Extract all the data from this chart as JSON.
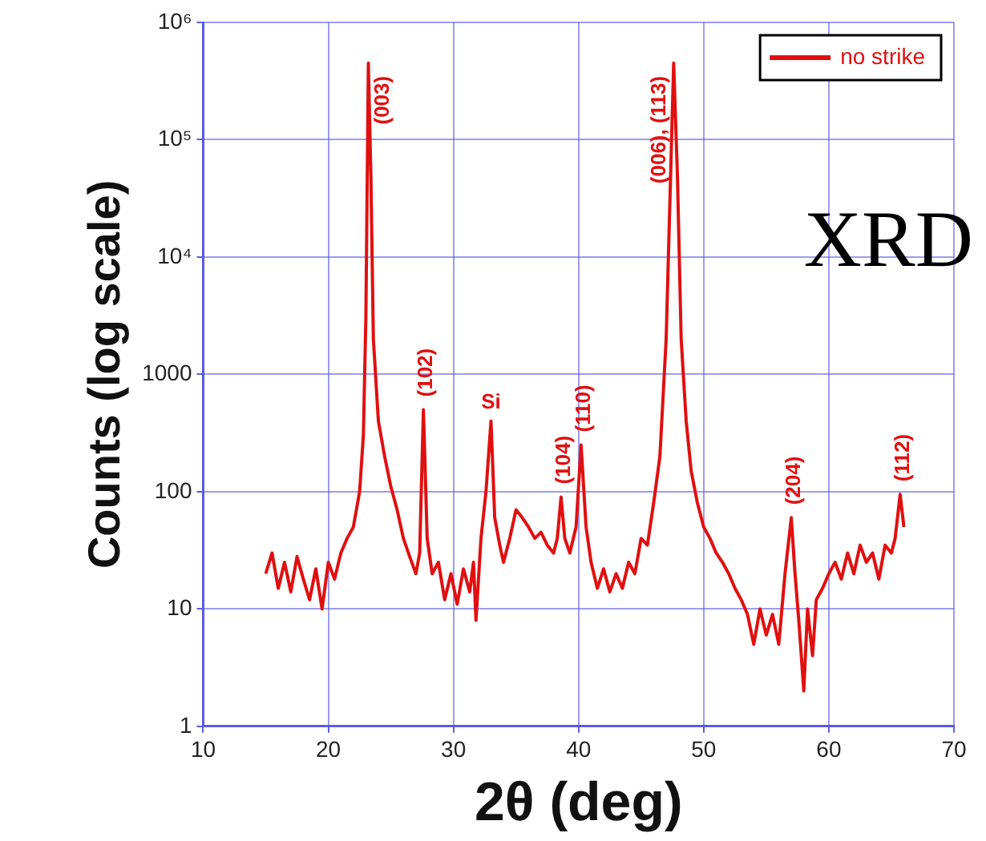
{
  "chart_data": {
    "type": "line",
    "xlabel": "2θ (deg)",
    "ylabel": "Counts (log scale)",
    "log": "y",
    "grid": true,
    "legend": "top right",
    "marker": "none",
    "line_style": "solid",
    "xlim": [
      10,
      70
    ],
    "xticks": [
      10,
      20,
      30,
      40,
      50,
      60,
      70
    ],
    "ylim": [
      1,
      1000000
    ],
    "yticks": [
      1,
      10,
      100,
      1000,
      {
        "value": 10000,
        "label": "10⁴"
      },
      {
        "value": 100000,
        "label": "10⁵"
      },
      {
        "value": 1000000,
        "label": "10⁶"
      }
    ],
    "series": [
      {
        "name": "no strike",
        "color": "#e01010",
        "x": [
          15,
          15.5,
          16,
          16.5,
          17,
          17.5,
          18,
          18.5,
          19,
          19.5,
          20,
          20.5,
          21,
          21.5,
          22,
          22.5,
          22.8,
          23.0,
          23.2,
          23.4,
          23.6,
          24,
          24.5,
          25,
          25.5,
          26,
          26.5,
          27,
          27.3,
          27.6,
          27.9,
          28.3,
          28.8,
          29.3,
          29.8,
          30.3,
          30.8,
          31.3,
          31.6,
          31.8,
          32.2,
          32.6,
          33.0,
          33.3,
          33.7,
          34,
          34.5,
          35,
          35.5,
          36,
          36.5,
          37,
          37.5,
          38,
          38.3,
          38.6,
          38.9,
          39.3,
          39.8,
          40.2,
          40.6,
          41,
          41.5,
          42,
          42.5,
          43,
          43.5,
          44,
          44.5,
          45,
          45.5,
          46,
          46.5,
          47,
          47.3,
          47.6,
          47.9,
          48.2,
          48.6,
          49,
          49.5,
          50,
          50.5,
          51,
          51.5,
          52,
          52.5,
          53,
          53.5,
          54,
          54.5,
          55,
          55.5,
          56,
          56.5,
          57,
          57.3,
          57.6,
          58,
          58.3,
          58.7,
          59,
          59.5,
          60,
          60.5,
          61,
          61.5,
          62,
          62.5,
          63,
          63.5,
          64,
          64.5,
          65,
          65.3,
          65.7,
          66
        ],
        "values": [
          20,
          30,
          15,
          25,
          14,
          28,
          18,
          12,
          22,
          10,
          25,
          18,
          30,
          40,
          50,
          100,
          300,
          3000,
          450000,
          50000,
          2000,
          400,
          200,
          110,
          70,
          40,
          28,
          20,
          30,
          500,
          40,
          20,
          25,
          12,
          20,
          11,
          22,
          14,
          25,
          8,
          40,
          100,
          400,
          60,
          35,
          25,
          40,
          70,
          60,
          50,
          40,
          45,
          35,
          30,
          40,
          90,
          40,
          30,
          50,
          250,
          50,
          25,
          15,
          22,
          14,
          20,
          15,
          25,
          20,
          40,
          35,
          80,
          200,
          2000,
          30000,
          450000,
          50000,
          2000,
          400,
          150,
          80,
          50,
          40,
          30,
          25,
          20,
          15,
          12,
          9,
          5,
          10,
          6,
          9,
          5,
          20,
          60,
          20,
          8,
          2,
          10,
          4,
          12,
          15,
          20,
          25,
          18,
          30,
          20,
          35,
          25,
          30,
          18,
          35,
          30,
          40,
          95,
          50
        ]
      }
    ],
    "annotations": [
      {
        "text": "(003)",
        "x": 23.2,
        "y": 450000
      },
      {
        "text": "(102)",
        "x": 27.6,
        "y": 500
      },
      {
        "text": "Si",
        "x": 33.0,
        "y": 400
      },
      {
        "text": "(104)",
        "x": 38.6,
        "y": 90
      },
      {
        "text": "(110)",
        "x": 40.2,
        "y": 250
      },
      {
        "text": "(006), (113)",
        "x": 47.6,
        "y": 450000
      },
      {
        "text": "(204)",
        "x": 57,
        "y": 60
      },
      {
        "text": "(112)",
        "x": 65.7,
        "y": 95
      },
      "XRD"
    ]
  }
}
